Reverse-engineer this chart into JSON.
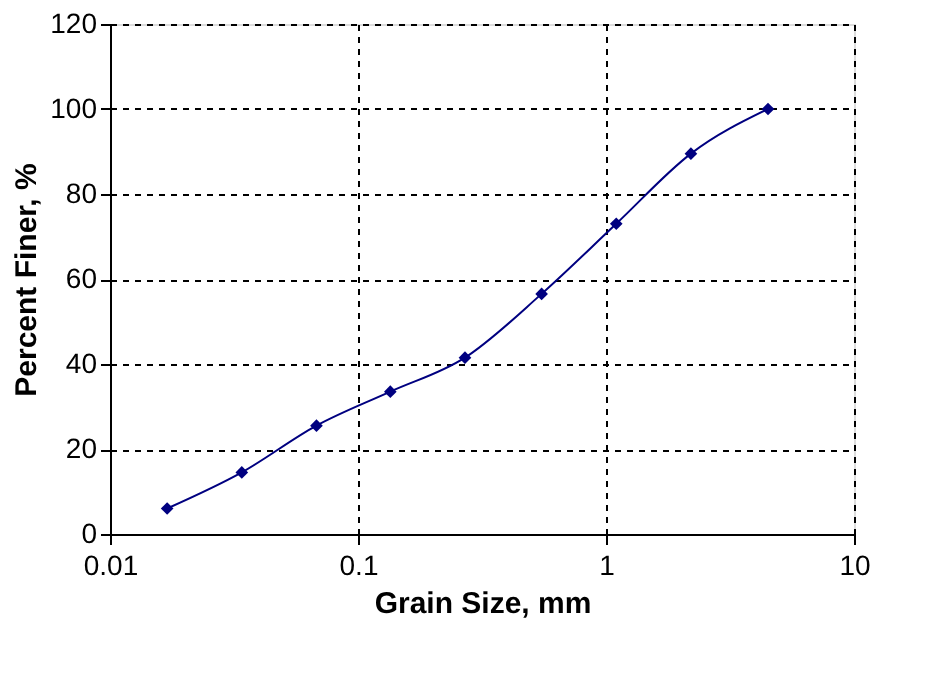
{
  "chart_data": {
    "type": "line",
    "xlabel": "Grain Size, mm",
    "ylabel": "Percent Finer, %",
    "x": [
      0.017,
      0.034,
      0.068,
      0.135,
      0.27,
      0.55,
      1.1,
      2.2,
      4.5
    ],
    "series": [
      {
        "color": "#000080",
        "values": [
          6,
          14.5,
          25.5,
          33.5,
          41.5,
          56.5,
          73,
          89.5,
          100
        ]
      }
    ],
    "xlim": [
      0.01,
      10
    ],
    "xticks": [
      0.01,
      0.1,
      1,
      10
    ],
    "ylim": [
      0,
      120
    ],
    "yticks": [
      0,
      20,
      40,
      60,
      80,
      100,
      120
    ],
    "log": "x",
    "grid": true,
    "marker": "diamond",
    "line_style": "solid"
  }
}
